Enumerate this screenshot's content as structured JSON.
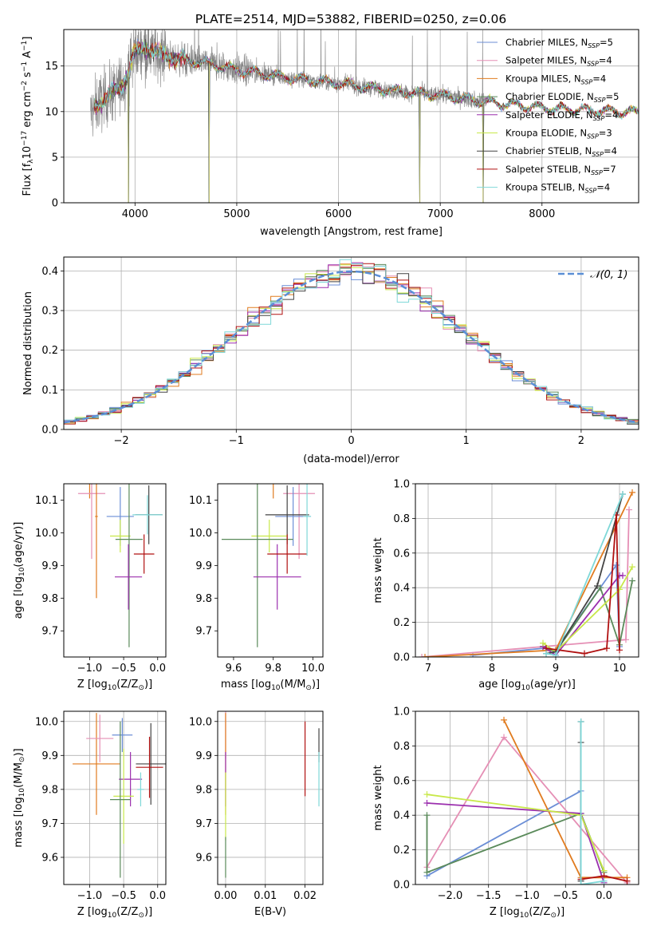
{
  "title": "PLATE=2514, MJD=53882, FIBERID=0250, z=0.06",
  "colors": {
    "chabrier_miles": "#6b8ed6",
    "salpeter_miles": "#e58fb5",
    "kroupa_miles": "#e07b1f",
    "chabrier_elodie": "#5a8a5a",
    "salpeter_elodie": "#9b2fae",
    "kroupa_elodie": "#c8e84a",
    "chabrier_stelib": "#444444",
    "salpeter_stelib": "#b01010",
    "kroupa_stelib": "#7fd8d8",
    "data": "#808080",
    "normal_curve": "#5b8fd6"
  },
  "chart_data": [
    {
      "type": "line",
      "id": "spectrum",
      "xlabel": "wavelength [Angstrom, rest frame]",
      "ylabel": "Flux [f",
      "ylabel_parts": [
        "Flux [f",
        "λ",
        "10",
        "−17",
        " erg cm",
        "−2",
        " s",
        "−1",
        " A",
        "−1",
        "]"
      ],
      "xlim": [
        3300,
        8950
      ],
      "ylim": [
        0,
        19
      ],
      "xticks": [
        4000,
        5000,
        6000,
        7000,
        8000
      ],
      "yticks": [
        0,
        5,
        10,
        15
      ],
      "grid": true,
      "legend": "top-right",
      "series": [
        {
          "key": "chabrier_miles",
          "name": "Chabrier MILES, N",
          "sub": "SSP",
          "suffix": "=5"
        },
        {
          "key": "salpeter_miles",
          "name": "Salpeter MILES, N",
          "sub": "SSP",
          "suffix": "=4"
        },
        {
          "key": "kroupa_miles",
          "name": "Kroupa MILES, N",
          "sub": "SSP",
          "suffix": "=4"
        },
        {
          "key": "chabrier_elodie",
          "name": "Chabrier ELODIE, N",
          "sub": "SSP",
          "suffix": "=5"
        },
        {
          "key": "salpeter_elodie",
          "name": "Salpeter ELODIE, N",
          "sub": "SSP",
          "suffix": "=4"
        },
        {
          "key": "kroupa_elodie",
          "name": "Kroupa ELODIE, N",
          "sub": "SSP",
          "suffix": "=3"
        },
        {
          "key": "chabrier_stelib",
          "name": "Chabrier STELIB, N",
          "sub": "SSP",
          "suffix": "=4"
        },
        {
          "key": "salpeter_stelib",
          "name": "Salpeter STELIB, N",
          "sub": "SSP",
          "suffix": "=7"
        },
        {
          "key": "kroupa_stelib",
          "name": "Kroupa STELIB, N",
          "sub": "SSP",
          "suffix": "=4"
        }
      ],
      "continuum": [
        [
          3600,
          10.5
        ],
        [
          3700,
          11.5
        ],
        [
          3800,
          12.2
        ],
        [
          3900,
          13.5
        ],
        [
          4000,
          16.5
        ],
        [
          4100,
          17.2
        ],
        [
          4200,
          16.5
        ],
        [
          4400,
          15.8
        ],
        [
          4700,
          15.3
        ],
        [
          5000,
          14.6
        ],
        [
          5500,
          13.7
        ],
        [
          6000,
          13.1
        ],
        [
          6500,
          12.3
        ],
        [
          7000,
          11.8
        ],
        [
          7500,
          11.0
        ],
        [
          8000,
          10.4
        ],
        [
          8500,
          10.1
        ],
        [
          8950,
          9.9
        ]
      ],
      "model_extent": [
        3600,
        8950
      ],
      "data_extent": [
        3560,
        7450
      ],
      "dips": [
        [
          3934,
          0
        ],
        [
          4730,
          0
        ],
        [
          6800,
          0
        ],
        [
          7420,
          0
        ]
      ]
    },
    {
      "type": "histogram",
      "id": "residuals",
      "xlabel": "(data-model)/error",
      "ylabel": "Normed distribution",
      "xlim": [
        -2.5,
        2.5
      ],
      "ylim": [
        0,
        0.435
      ],
      "xticks": [
        -2,
        -1,
        0,
        1,
        2
      ],
      "yticks": [
        0.0,
        0.1,
        0.2,
        0.3,
        0.4
      ],
      "grid": true,
      "legend": "top-right",
      "legend_label": "𝒩(0, 1)",
      "bin_width": 0.1
    },
    {
      "type": "scatter",
      "id": "age_vs_Z",
      "xlabel": "Z [log",
      "xlabel_parts": [
        "Z [log",
        "10",
        "(Z/Z",
        "⊙",
        ")]"
      ],
      "ylabel_parts": [
        "age  [log",
        "10",
        "(age/yr)]"
      ],
      "xlim": [
        -1.38,
        0.12
      ],
      "ylim": [
        9.62,
        10.15
      ],
      "xticks": [
        -1.0,
        -0.5,
        0.0
      ],
      "yticks": [
        9.7,
        9.8,
        9.9,
        10.0,
        10.1
      ],
      "grid": false,
      "points": [
        {
          "key": "kroupa_miles",
          "x": -1.0,
          "xerr": 0.25,
          "y": 10.155,
          "yerr": 0.05
        },
        {
          "key": "salpeter_miles",
          "x": -0.97,
          "xerr": 0.2,
          "y": 10.12,
          "yerr": 0.2
        },
        {
          "key": "kroupa_miles",
          "x": -0.9,
          "xerr": 0.02,
          "y": 10.05,
          "yerr": 0.25
        },
        {
          "key": "chabrier_miles",
          "x": -0.55,
          "xerr": 0.2,
          "y": 10.05,
          "yerr": 0.09
        },
        {
          "key": "kroupa_elodie",
          "x": -0.55,
          "xerr": 0.15,
          "y": 9.99,
          "yerr": 0.05
        },
        {
          "key": "chabrier_elodie",
          "x": -0.42,
          "xerr": 0.2,
          "y": 9.98,
          "yerr": 0.33
        },
        {
          "key": "salpeter_elodie",
          "x": -0.43,
          "xerr": 0.2,
          "y": 9.865,
          "yerr": 0.1
        },
        {
          "key": "chabrier_stelib",
          "x": -0.13,
          "xerr": 0.2,
          "y": 10.055,
          "yerr": 0.09
        },
        {
          "key": "kroupa_stelib",
          "x": -0.15,
          "xerr": 0.22,
          "y": 10.055,
          "yerr": 0.06
        },
        {
          "key": "salpeter_stelib",
          "x": -0.2,
          "xerr": 0.15,
          "y": 9.935,
          "yerr": 0.06
        }
      ]
    },
    {
      "type": "scatter",
      "id": "age_vs_mass",
      "xlabel_parts": [
        "mass [log",
        "10",
        "(M/M",
        "⊙",
        ")]"
      ],
      "xlim": [
        9.52,
        10.05
      ],
      "ylim": [
        9.62,
        10.15
      ],
      "xticks": [
        9.6,
        9.8,
        10.0
      ],
      "yticks": [
        9.7,
        9.8,
        9.9,
        10.0,
        10.1
      ],
      "grid": false,
      "points": [
        {
          "key": "kroupa_miles",
          "x": 9.8,
          "xerr": 0.13,
          "y": 10.155,
          "yerr": 0.05
        },
        {
          "key": "salpeter_miles",
          "x": 9.93,
          "xerr": 0.08,
          "y": 10.12,
          "yerr": 0.2
        },
        {
          "key": "chabrier_miles",
          "x": 9.9,
          "xerr": 0.09,
          "y": 10.05,
          "yerr": 0.09
        },
        {
          "key": "chabrier_stelib",
          "x": 9.87,
          "xerr": 0.11,
          "y": 10.055,
          "yerr": 0.09
        },
        {
          "key": "kroupa_elodie",
          "x": 9.78,
          "xerr": 0.09,
          "y": 9.99,
          "yerr": 0.05
        },
        {
          "key": "chabrier_elodie",
          "x": 9.72,
          "xerr": 0.18,
          "y": 9.98,
          "yerr": 0.33
        },
        {
          "key": "salpeter_elodie",
          "x": 9.82,
          "xerr": 0.12,
          "y": 9.865,
          "yerr": 0.1
        },
        {
          "key": "salpeter_stelib",
          "x": 9.87,
          "xerr": 0.1,
          "y": 9.935,
          "yerr": 0.06
        },
        {
          "key": "kroupa_stelib",
          "x": 9.97,
          "xerr": 0.02,
          "y": 10.05,
          "yerr": 0.12
        }
      ]
    },
    {
      "type": "line",
      "id": "weight_vs_age",
      "xlabel_parts": [
        "age  [log",
        "10",
        "(age/yr)]"
      ],
      "ylabel": "mass weight",
      "xlim": [
        6.8,
        10.3
      ],
      "ylim": [
        0,
        1.0
      ],
      "xticks": [
        7,
        8,
        9,
        10
      ],
      "yticks": [
        0.0,
        0.2,
        0.4,
        0.6,
        0.8,
        1.0
      ],
      "grid": true,
      "series": [
        {
          "key": "chabrier_miles",
          "x": [
            7.7,
            8.8,
            9.0,
            9.95,
            10.0
          ],
          "y": [
            0.01,
            0.05,
            0.04,
            0.53,
            0.06
          ]
        },
        {
          "key": "salpeter_miles",
          "x": [
            6.9,
            8.8,
            10.1,
            10.15
          ],
          "y": [
            0.0,
            0.06,
            0.1,
            0.85
          ]
        },
        {
          "key": "kroupa_miles",
          "x": [
            6.95,
            9.0,
            10.2
          ],
          "y": [
            0.0,
            0.04,
            0.95
          ]
        },
        {
          "key": "chabrier_elodie",
          "x": [
            8.8,
            9.0,
            9.7,
            10.0,
            10.2
          ],
          "y": [
            0.06,
            0.03,
            0.4,
            0.07,
            0.44
          ]
        },
        {
          "key": "salpeter_elodie",
          "x": [
            8.8,
            9.0,
            10.0,
            10.05
          ],
          "y": [
            0.06,
            0.01,
            0.47,
            0.47
          ]
        },
        {
          "key": "kroupa_elodie",
          "x": [
            8.8,
            9.0,
            10.0,
            10.2
          ],
          "y": [
            0.08,
            0.03,
            0.39,
            0.52
          ]
        },
        {
          "key": "chabrier_stelib",
          "x": [
            8.85,
            9.0,
            9.65,
            10.05
          ],
          "y": [
            0.02,
            0.03,
            0.41,
            0.94
          ]
        },
        {
          "key": "salpeter_stelib",
          "x": [
            8.85,
            9.45,
            9.8,
            9.95,
            10.0
          ],
          "y": [
            0.05,
            0.02,
            0.05,
            0.82,
            0.04
          ]
        },
        {
          "key": "kroupa_stelib",
          "x": [
            8.85,
            9.0,
            10.05
          ],
          "y": [
            0.02,
            0.01,
            0.94
          ]
        }
      ]
    },
    {
      "type": "scatter",
      "id": "mass_vs_Z",
      "xlabel_parts": [
        "Z [log",
        "10",
        "(Z/Z",
        "⊙",
        ")]"
      ],
      "ylabel_parts": [
        "mass [log",
        "10",
        "(M/M",
        "⊙",
        ")]"
      ],
      "xlim": [
        -1.38,
        0.12
      ],
      "ylim": [
        9.52,
        10.03
      ],
      "xticks": [
        -1.0,
        -0.5,
        0.0
      ],
      "yticks": [
        9.6,
        9.7,
        9.8,
        9.9,
        10.0
      ],
      "grid": true,
      "points": [
        {
          "key": "kroupa_miles",
          "x": -0.9,
          "xerr": 0.35,
          "y": 9.875,
          "yerr": 0.15
        },
        {
          "key": "salpeter_miles",
          "x": -0.85,
          "xerr": 0.2,
          "y": 9.95,
          "yerr": 0.07
        },
        {
          "key": "chabrier_miles",
          "x": -0.52,
          "xerr": 0.15,
          "y": 9.96,
          "yerr": 0.05
        },
        {
          "key": "salpeter_elodie",
          "x": -0.4,
          "xerr": 0.17,
          "y": 9.83,
          "yerr": 0.08
        },
        {
          "key": "kroupa_elodie",
          "x": -0.5,
          "xerr": 0.15,
          "y": 9.78,
          "yerr": 0.14
        },
        {
          "key": "chabrier_elodie",
          "x": -0.55,
          "xerr": 0.15,
          "y": 9.77,
          "yerr": 0.23
        },
        {
          "key": "chabrier_stelib",
          "x": -0.1,
          "xerr": 0.22,
          "y": 9.875,
          "yerr": 0.12
        },
        {
          "key": "salpeter_stelib",
          "x": -0.12,
          "xerr": 0.2,
          "y": 9.865,
          "yerr": 0.09
        },
        {
          "key": "kroupa_stelib",
          "x": -0.25,
          "xerr": 0.05,
          "y": 9.8,
          "yerr": 0.05
        }
      ]
    },
    {
      "type": "scatter",
      "id": "mass_vs_ebv",
      "xlabel": "E(B-V)",
      "xlim": [
        -0.002,
        0.0245
      ],
      "ylim": [
        9.52,
        10.03
      ],
      "xticks": [
        0.0,
        0.01,
        0.02
      ],
      "xticklabels": [
        "0.00",
        "0.01",
        "0.02"
      ],
      "yticks": [
        9.6,
        9.7,
        9.8,
        9.9,
        10.0
      ],
      "grid": true,
      "points": [
        {
          "key": "salpeter_miles",
          "x": 0.0,
          "y": 9.96,
          "yerr": 0.07
        },
        {
          "key": "kroupa_miles",
          "x": 0.0,
          "y": 9.875,
          "yerr": 0.15
        },
        {
          "key": "salpeter_elodie",
          "x": 0.0,
          "y": 9.83,
          "yerr": 0.08
        },
        {
          "key": "kroupa_elodie",
          "x": 0.0,
          "y": 9.75,
          "yerr": 0.1
        },
        {
          "key": "chabrier_elodie",
          "x": 0.0,
          "y": 9.6,
          "yerr": 0.06
        },
        {
          "key": "salpeter_stelib",
          "x": 0.02,
          "y": 9.89,
          "yerr": 0.11
        },
        {
          "key": "chabrier_stelib",
          "x": 0.0235,
          "y": 9.93,
          "yerr": 0.05
        },
        {
          "key": "kroupa_stelib",
          "x": 0.0235,
          "y": 9.83,
          "yerr": 0.08
        }
      ]
    },
    {
      "type": "line",
      "id": "weight_vs_Z",
      "xlabel_parts": [
        "Z [log",
        "10",
        "(Z/Z",
        "⊙",
        ")]"
      ],
      "ylabel": "mass weight",
      "xlim": [
        -2.45,
        0.45
      ],
      "ylim": [
        0,
        1.0
      ],
      "xticks": [
        -2.0,
        -1.5,
        -1.0,
        -0.5,
        0.0
      ],
      "yticks": [
        0.0,
        0.2,
        0.4,
        0.6,
        0.8,
        1.0
      ],
      "grid": true,
      "series": [
        {
          "key": "chabrier_miles",
          "x": [
            -2.3,
            -0.3,
            -0.3
          ],
          "y": [
            0.05,
            0.54,
            0.03
          ]
        },
        {
          "key": "salpeter_miles",
          "x": [
            -2.3,
            -1.3,
            0.3
          ],
          "y": [
            0.1,
            0.85,
            0.01
          ]
        },
        {
          "key": "kroupa_miles",
          "x": [
            -1.3,
            -0.3,
            0.3
          ],
          "y": [
            0.95,
            0.04,
            0.04
          ]
        },
        {
          "key": "chabrier_elodie",
          "x": [
            -2.3,
            -2.3,
            -0.3,
            0.0
          ],
          "y": [
            0.4,
            0.07,
            0.41,
            0.07
          ]
        },
        {
          "key": "salpeter_elodie",
          "x": [
            -2.3,
            -0.3,
            0.0
          ],
          "y": [
            0.47,
            0.41,
            0.01
          ]
        },
        {
          "key": "kroupa_elodie",
          "x": [
            -2.3,
            -0.3,
            0.0
          ],
          "y": [
            0.52,
            0.4,
            0.08
          ]
        },
        {
          "key": "chabrier_stelib",
          "x": [
            -0.3,
            -0.3,
            -0.3
          ],
          "y": [
            0.94,
            0.82,
            0.02
          ]
        },
        {
          "key": "salpeter_stelib",
          "x": [
            -0.3,
            0.0,
            0.3
          ],
          "y": [
            0.03,
            0.05,
            0.02
          ]
        },
        {
          "key": "kroupa_stelib",
          "x": [
            -0.3,
            -0.3,
            0.0
          ],
          "y": [
            0.94,
            0.0,
            0.02
          ]
        }
      ]
    }
  ]
}
